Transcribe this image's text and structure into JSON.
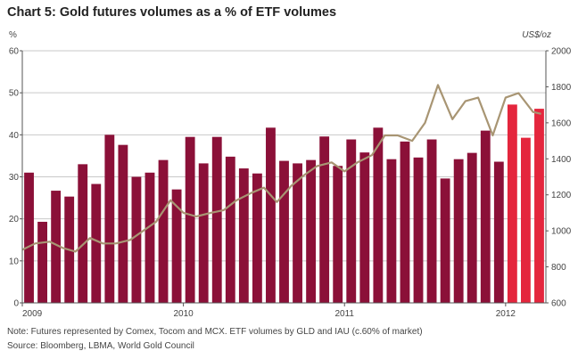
{
  "chart_data": {
    "type": "bar",
    "title": "Chart 5: Gold futures volumes as a % of ETF volumes",
    "left_axis_label": "%",
    "right_axis_label": "US$/oz",
    "ylim": [
      0,
      60
    ],
    "yticks": [
      0,
      10,
      20,
      30,
      40,
      50,
      60
    ],
    "y2lim": [
      600,
      2000
    ],
    "y2ticks": [
      600,
      800,
      1000,
      1200,
      1400,
      1600,
      1800,
      2000
    ],
    "xtick_labels": [
      "2009",
      "2010",
      "2011",
      "2012"
    ],
    "grid": true,
    "colors": {
      "bar": "#8b1038",
      "bar_highlight": "#e4263d",
      "line": "#a89573",
      "grid": "#c9c9c9",
      "axis": "#555555"
    },
    "bar_months": [
      "2009-01",
      "2009-02",
      "2009-03",
      "2009-04",
      "2009-05",
      "2009-06",
      "2009-07",
      "2009-08",
      "2009-09",
      "2009-10",
      "2009-11",
      "2009-12",
      "2010-01",
      "2010-02",
      "2010-03",
      "2010-04",
      "2010-05",
      "2010-06",
      "2010-07",
      "2010-08",
      "2010-09",
      "2010-10",
      "2010-11",
      "2010-12",
      "2011-01",
      "2011-02",
      "2011-03",
      "2011-04",
      "2011-05",
      "2011-06",
      "2011-07",
      "2011-08",
      "2011-09",
      "2011-10",
      "2011-11",
      "2011-12",
      "2012-01",
      "2012-02",
      "2012-03"
    ],
    "bar_highlight_from_index": 36,
    "series": [
      {
        "type": "bar",
        "axis": "left",
        "values": [
          31,
          19.3,
          26.7,
          25.3,
          33,
          28.3,
          40,
          37.6,
          30,
          31,
          34,
          27,
          39.5,
          33.2,
          39.5,
          34.8,
          32,
          30.8,
          41.7,
          33.8,
          33.2,
          34,
          39.6,
          32.6,
          38.9,
          35.8,
          41.7,
          34.2,
          38.4,
          34.6,
          38.9,
          29.6,
          34.2,
          35.7,
          41,
          33.6,
          47.2,
          39.3,
          46.2
        ]
      },
      {
        "type": "line",
        "axis": "right",
        "x": [
          2009.0,
          2009.08,
          2009.17,
          2009.25,
          2009.33,
          2009.42,
          2009.5,
          2009.58,
          2009.67,
          2009.75,
          2009.83,
          2009.92,
          2010.0,
          2010.08,
          2010.17,
          2010.25,
          2010.33,
          2010.42,
          2010.5,
          2010.58,
          2010.67,
          2010.75,
          2010.83,
          2010.92,
          2011.0,
          2011.08,
          2011.17,
          2011.25,
          2011.33,
          2011.42,
          2011.5,
          2011.58,
          2011.67,
          2011.75,
          2011.83,
          2011.92,
          2012.0,
          2012.08,
          2012.17,
          2012.22
        ],
        "values": [
          895,
          930,
          940,
          905,
          885,
          960,
          930,
          930,
          950,
          1000,
          1050,
          1170,
          1100,
          1080,
          1100,
          1115,
          1170,
          1210,
          1240,
          1160,
          1250,
          1310,
          1360,
          1380,
          1330,
          1380,
          1420,
          1530,
          1530,
          1500,
          1600,
          1810,
          1620,
          1720,
          1740,
          1530,
          1740,
          1765,
          1660,
          1650
        ]
      }
    ]
  },
  "notes": {
    "note": "Note: Futures represented by Comex, Tocom and MCX. ETF volumes by GLD and IAU (c.60% of market)",
    "source": "Source: Bloomberg, LBMA, World Gold Council"
  }
}
